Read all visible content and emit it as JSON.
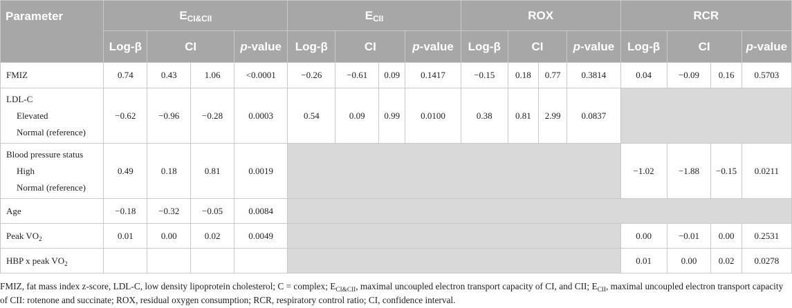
{
  "headers": {
    "parameter": "Parameter",
    "groups": [
      {
        "main": "E",
        "sub": "CI&CII"
      },
      {
        "main": "E",
        "sub": "CII"
      },
      {
        "main": "ROX",
        "sub": ""
      },
      {
        "main": "RCR",
        "sub": ""
      }
    ],
    "logbeta": "Log-β",
    "ci": "CI",
    "p_italic": "p",
    "p_rest": "-value"
  },
  "rows": {
    "fmiz": {
      "label": "FMIZ",
      "vals": [
        "0.74",
        "0.43",
        "1.06",
        "<0.0001",
        "−0.26",
        "−0.61",
        "0.09",
        "0.1417",
        "−0.15",
        "0.18",
        "0.77",
        "0.3814",
        "0.04",
        "−0.09",
        "0.16",
        "0.5703"
      ]
    },
    "ldl": {
      "label": "LDL-C",
      "sub1": "Elevated",
      "sub2": "Normal (reference)",
      "vals": [
        "−0.62",
        "−0.96",
        "−0.28",
        "0.0003",
        "0.54",
        "0.09",
        "0.99",
        "0.0100",
        "0.38",
        "0.81",
        "2.99",
        "0.0837"
      ]
    },
    "bp": {
      "label": "Blood pressure status",
      "sub1": "High",
      "sub2": "Normal (reference)",
      "vals_a": [
        "0.49",
        "0.18",
        "0.81",
        "0.0019"
      ],
      "vals_d": [
        "−1.02",
        "−1.88",
        "−0.15",
        "0.0211"
      ]
    },
    "age": {
      "label": "Age",
      "vals": [
        "−0.18",
        "−0.32",
        "−0.05",
        "0.0084"
      ]
    },
    "peak": {
      "label_pre": "Peak V",
      "label_sub": "O",
      "label_num": "2",
      "vals_a": [
        "0.01",
        "0.00",
        "0.02",
        "0.0049"
      ],
      "vals_d": [
        "0.00",
        "−0.01",
        "0.00",
        "0.2531"
      ]
    },
    "hbp": {
      "label_pre": "HBP x peak V",
      "label_sub": "O",
      "label_num": "2",
      "vals_d": [
        "0.01",
        "0.00",
        "0.02",
        "0.0278"
      ]
    }
  },
  "caption": {
    "text1": "FMIZ, fat mass index z-score, LDL-C, low density lipoprotein cholesterol; C = complex; E",
    "sub1": "CI&CII",
    "text2": ", maximal uncoupled electron transport capacity of CI, and CII; E",
    "sub2": "CII",
    "text3": ", maximal uncoupled electron transport capacity of CII: rotenone and succinate; ROX, residual oxygen consumption; RCR, respiratory control ratio; CI, confidence interval."
  }
}
